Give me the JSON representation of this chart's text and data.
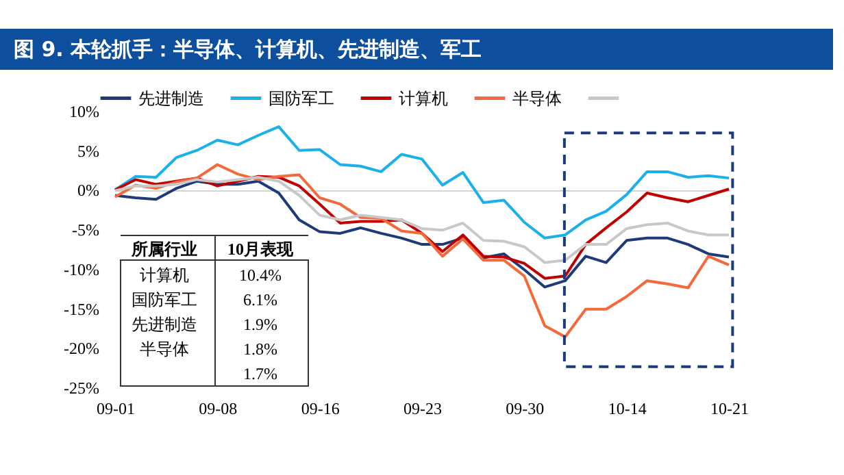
{
  "chart_data": {
    "type": "line",
    "title": "图 9. 本轮抓手：半导体、计算机、先进制造、军工",
    "categories": [
      "09-01",
      null,
      null,
      null,
      null,
      "09-08",
      null,
      null,
      null,
      null,
      "09-16",
      null,
      null,
      null,
      null,
      "09-23",
      null,
      null,
      null,
      null,
      "09-30",
      null,
      null,
      null,
      null,
      "10-14",
      null,
      null,
      null,
      null,
      "10-21"
    ],
    "series": [
      {
        "name": "先进制造",
        "color": "#1f3a78",
        "values": [
          -0.7,
          -1.0,
          -1.2,
          0.2,
          1.1,
          0.7,
          0.7,
          1.1,
          -0.4,
          -3.8,
          -5.3,
          -5.5,
          -4.8,
          -5.5,
          -6.1,
          -6.9,
          -6.9,
          -6.1,
          -8.6,
          -8.1,
          -10.1,
          -12.3,
          -11.5,
          -8.4,
          -9.2,
          -6.4,
          -6.1,
          -6.1,
          -6.9,
          -8.1,
          -8.5
        ]
      },
      {
        "name": "国防军工",
        "color": "#1cb0ea",
        "values": [
          0.0,
          1.7,
          1.6,
          4.1,
          5.0,
          6.3,
          5.7,
          6.9,
          8.0,
          5.0,
          5.1,
          3.2,
          3.0,
          2.3,
          4.5,
          3.9,
          0.6,
          2.2,
          -1.6,
          -1.3,
          -4.1,
          -6.1,
          -5.7,
          -3.8,
          -2.7,
          -0.6,
          2.3,
          2.3,
          1.6,
          1.8,
          1.5
        ]
      },
      {
        "name": "计算机",
        "color": "#c00000",
        "values": [
          0.0,
          1.3,
          0.7,
          1.1,
          1.5,
          0.5,
          1.1,
          1.7,
          1.6,
          0.5,
          -1.8,
          -4.2,
          -4.0,
          -4.0,
          -3.8,
          -5.5,
          -7.8,
          -5.7,
          -8.4,
          -8.5,
          -9.3,
          -11.2,
          -10.9,
          -6.9,
          -4.8,
          -2.8,
          -0.4,
          -1.0,
          -1.5,
          -0.7,
          0.1
        ]
      },
      {
        "name": "半导体",
        "color": "#f4693c",
        "values": [
          -0.9,
          0.6,
          0.2,
          1.0,
          1.5,
          3.2,
          2.0,
          1.3,
          1.7,
          1.9,
          -1.0,
          -1.8,
          -3.5,
          -3.6,
          -5.2,
          -5.5,
          -8.4,
          -6.2,
          -8.9,
          -8.9,
          -10.9,
          -17.2,
          -18.6,
          -15.1,
          -15.1,
          -13.5,
          -11.5,
          -11.9,
          -12.4,
          -8.4,
          -9.5
        ]
      },
      {
        "color": "#c8c8c8",
        "values": [
          -0.1,
          0.5,
          0.5,
          0.7,
          1.3,
          1.0,
          1.3,
          1.6,
          1.1,
          -0.7,
          -3.2,
          -3.8,
          -3.2,
          -3.5,
          -3.8,
          -4.9,
          -5.1,
          -4.2,
          -6.4,
          -6.5,
          -7.2,
          -9.2,
          -8.9,
          -6.9,
          -6.9,
          -4.9,
          -4.4,
          -4.2,
          -5.2,
          -5.7,
          -5.7
        ]
      }
    ],
    "ylim": [
      -25,
      10
    ],
    "yticks": [
      {
        "value": -25,
        "label": "-25%"
      },
      {
        "value": -20,
        "label": "-20%"
      },
      {
        "value": -15,
        "label": "-15%"
      },
      {
        "value": -10,
        "label": "-10%"
      },
      {
        "value": -5,
        "label": "-5%"
      },
      {
        "value": 0,
        "label": "0%"
      },
      {
        "value": 5,
        "label": "5%"
      },
      {
        "value": 10,
        "label": "10%"
      }
    ],
    "legend": "top",
    "marker": "none",
    "line_style": "solid",
    "annotations": [
      "所属行业",
      "10月表现",
      "计算机",
      "10.4%",
      "国防军工",
      "6.1%",
      "先进制造",
      "1.9%",
      "半导体",
      "1.8%",
      "1.7%"
    ]
  }
}
